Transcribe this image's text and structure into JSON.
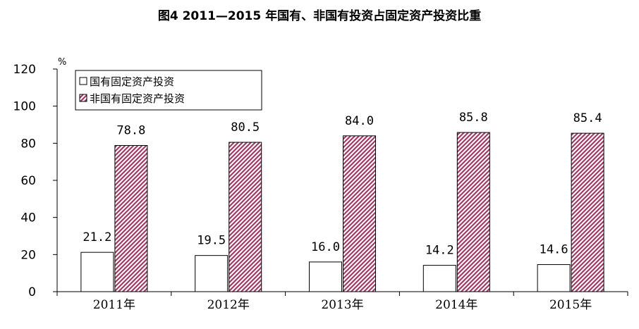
{
  "chart_data": {
    "type": "bar",
    "title": "图4  2011—2015 年国有、非国有投资占固定资产投资比重",
    "unit_label": "%",
    "categories": [
      "2011年",
      "2012年",
      "2013年",
      "2014年",
      "2015年"
    ],
    "series": [
      {
        "name": "国有固定资产投资",
        "values": [
          21.2,
          19.5,
          16.0,
          14.2,
          14.6
        ],
        "labels": [
          "21.2",
          "19.5",
          "16.0",
          "14.2",
          "14.6"
        ],
        "fill": "#ffffff",
        "stroke": "#000000"
      },
      {
        "name": "非国有固定资产投资",
        "values": [
          78.8,
          80.5,
          84.0,
          85.8,
          85.4
        ],
        "labels": [
          "78.8",
          "80.5",
          "84.0",
          "85.8",
          "85.4"
        ],
        "fill": "hatch",
        "hatch_color": "#9b3c63",
        "stroke": "#000000"
      }
    ],
    "ylim": [
      0,
      120
    ],
    "yticks": [
      0,
      20,
      40,
      60,
      80,
      100,
      120
    ],
    "grid": false,
    "legend_position": "top-left"
  }
}
